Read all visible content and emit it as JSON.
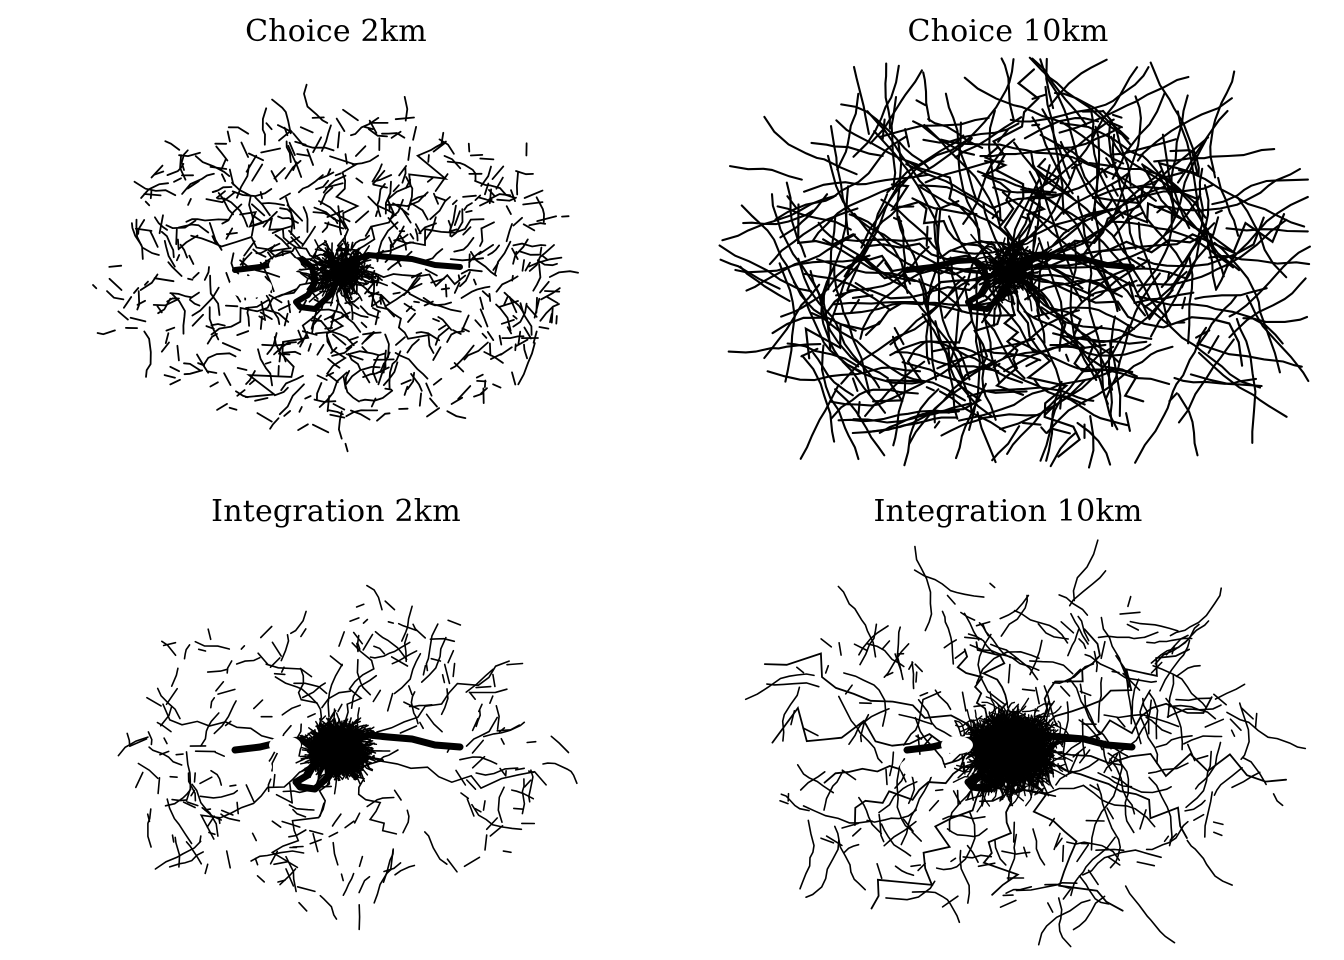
{
  "panels": [
    {
      "title": "Choice 2km",
      "style": "sparse-fragments"
    },
    {
      "title": "Choice 10km",
      "style": "continuous-network"
    },
    {
      "title": "Integration 2km",
      "style": "dense-core-sparse"
    },
    {
      "title": "Integration 10km",
      "style": "dense-core-wide"
    }
  ],
  "colors": {
    "background": "#ffffff",
    "line": "#000000"
  }
}
